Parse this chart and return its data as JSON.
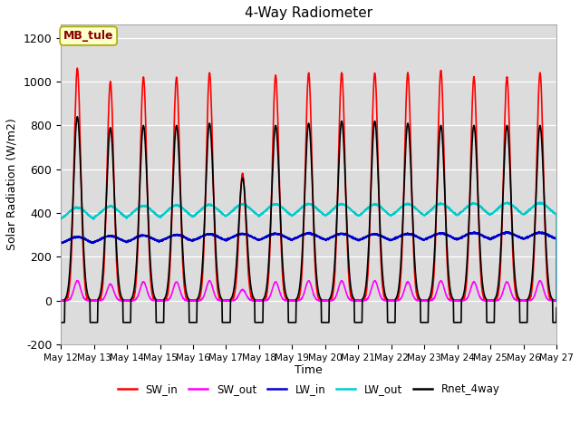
{
  "title": "4-Way Radiometer",
  "xlabel": "Time",
  "ylabel": "Solar Radiation (W/m2)",
  "ylim": [
    -200,
    1260
  ],
  "yticks": [
    -200,
    0,
    200,
    400,
    600,
    800,
    1000,
    1200
  ],
  "x_labels": [
    "May 12",
    "May 13",
    "May 14",
    "May 15",
    "May 16",
    "May 17",
    "May 18",
    "May 19",
    "May 20",
    "May 21",
    "May 22",
    "May 23",
    "May 24",
    "May 25",
    "May 26",
    "May 27"
  ],
  "annotation_text": "MB_tule",
  "annotation_color": "#8B0000",
  "annotation_bg": "#FFFFCC",
  "annotation_edge": "#AAAA00",
  "series": {
    "SW_in": {
      "color": "#FF0000",
      "lw": 1.2
    },
    "SW_out": {
      "color": "#FF00FF",
      "lw": 1.2
    },
    "LW_in": {
      "color": "#0000CC",
      "lw": 1.2
    },
    "LW_out": {
      "color": "#00CCCC",
      "lw": 1.2
    },
    "Rnet_4way": {
      "color": "#000000",
      "lw": 1.2
    }
  },
  "num_days": 15,
  "points_per_day": 288,
  "peaks_SW": [
    1060,
    1000,
    1020,
    1020,
    1040,
    580,
    1030,
    1040,
    1040,
    1040,
    1040,
    1050,
    1020,
    1020,
    1040
  ],
  "peaks_Rnet": [
    840,
    790,
    800,
    800,
    810,
    560,
    800,
    810,
    820,
    820,
    810,
    800,
    800,
    800,
    800
  ],
  "peaks_SWout": [
    90,
    75,
    85,
    85,
    90,
    50,
    85,
    90,
    90,
    90,
    85,
    90,
    85,
    85,
    90
  ],
  "LW_in_starts": [
    255,
    260,
    262,
    265,
    268,
    270,
    270,
    272,
    270,
    268,
    270,
    272,
    274,
    275,
    275
  ],
  "LW_out_starts": [
    360,
    365,
    368,
    370,
    372,
    374,
    375,
    376,
    375,
    374,
    376,
    377,
    378,
    380,
    380
  ]
}
